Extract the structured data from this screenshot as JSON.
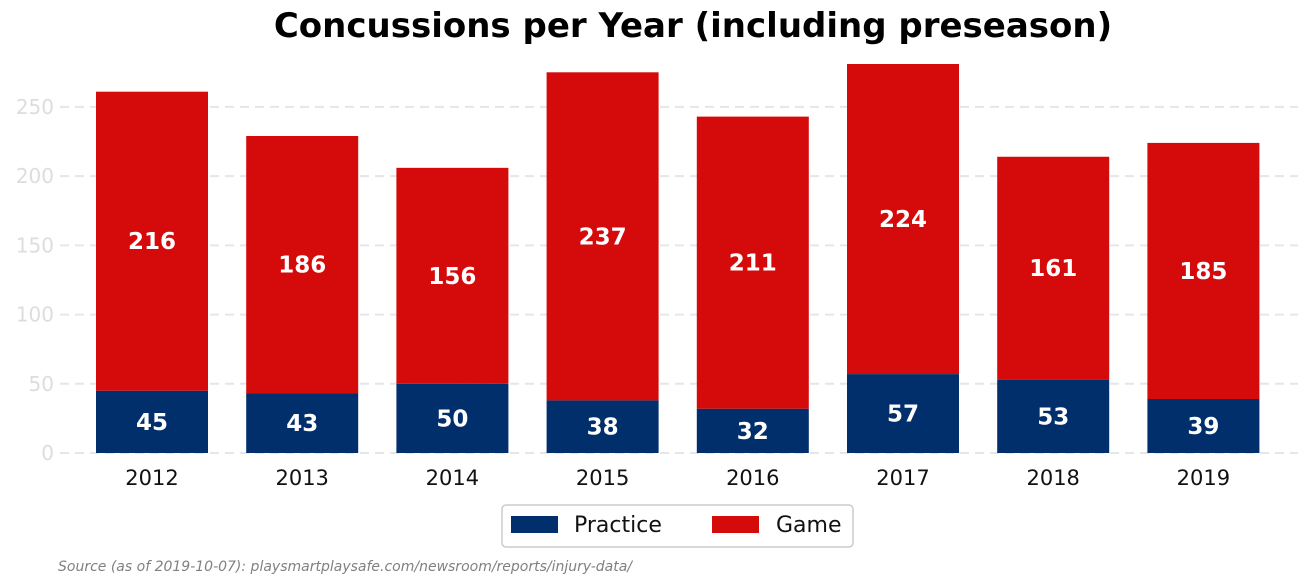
{
  "chart_data": {
    "type": "bar",
    "stacked": true,
    "title": "Concussions per Year (including preseason)",
    "categories": [
      "2012",
      "2013",
      "2014",
      "2015",
      "2016",
      "2017",
      "2018",
      "2019"
    ],
    "series": [
      {
        "name": "Practice",
        "color": "#002F6C",
        "values": [
          45,
          43,
          50,
          38,
          32,
          57,
          53,
          39
        ]
      },
      {
        "name": "Game",
        "color": "#D50A0A",
        "values": [
          216,
          186,
          156,
          237,
          211,
          224,
          161,
          185
        ]
      }
    ],
    "ylim": [
      0,
      281
    ],
    "yticks": [
      0,
      50,
      100,
      150,
      200,
      250
    ],
    "grid": true,
    "legend": "bottom-center",
    "xlabel": "",
    "ylabel": ""
  },
  "source": "Source (as of 2019-10-07): playsmartplaysafe.com/newsroom/reports/injury-data/"
}
